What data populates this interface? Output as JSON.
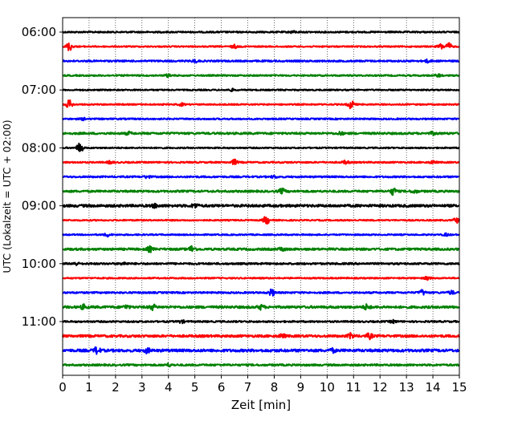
{
  "chart_data": {
    "type": "line",
    "title": "",
    "xlabel": "Zeit  [min]",
    "ylabel": "UTC (Lokalzeit = UTC + 02:00)",
    "xlim": [
      0,
      15
    ],
    "x_ticks": [
      "0",
      "1",
      "2",
      "3",
      "4",
      "5",
      "6",
      "7",
      "8",
      "9",
      "10",
      "11",
      "12",
      "13",
      "14",
      "15"
    ],
    "y_ticks": [
      "06:00",
      "07:00",
      "08:00",
      "09:00",
      "10:00",
      "11:00"
    ],
    "grid": "vertical-dotted",
    "trace_colors": [
      "#000000",
      "#ff0000",
      "#0000ff",
      "#008000"
    ],
    "traces": [
      {
        "start": "06:00",
        "noise": 0.9,
        "events": [
          [
            8.7,
            1.2
          ]
        ]
      },
      {
        "start": "06:15",
        "noise": 0.8,
        "events": [
          [
            0.25,
            5
          ],
          [
            6.5,
            2
          ],
          [
            14.3,
            3
          ],
          [
            14.6,
            4
          ]
        ]
      },
      {
        "start": "06:30",
        "noise": 1.0,
        "events": [
          [
            5.0,
            1.5
          ],
          [
            13.8,
            1.5
          ]
        ]
      },
      {
        "start": "06:45",
        "noise": 0.9,
        "events": [
          [
            4.0,
            1.5
          ],
          [
            14.2,
            1.5
          ]
        ]
      },
      {
        "start": "07:00",
        "noise": 0.8,
        "events": [
          [
            6.4,
            1.2
          ]
        ]
      },
      {
        "start": "07:15",
        "noise": 0.8,
        "events": [
          [
            0.25,
            5
          ],
          [
            4.5,
            1.5
          ],
          [
            10.9,
            5
          ]
        ]
      },
      {
        "start": "07:30",
        "noise": 0.9,
        "events": [
          [
            0.8,
            1.2
          ]
        ]
      },
      {
        "start": "07:45",
        "noise": 1.2,
        "events": [
          [
            2.5,
            1.5
          ],
          [
            10.5,
            1.5
          ],
          [
            14.0,
            1.5
          ]
        ]
      },
      {
        "start": "08:00",
        "noise": 0.8,
        "events": [
          [
            0.65,
            6
          ]
        ]
      },
      {
        "start": "08:15",
        "noise": 0.9,
        "events": [
          [
            1.8,
            1.5
          ],
          [
            6.5,
            3
          ],
          [
            10.7,
            2
          ],
          [
            14.0,
            1.5
          ]
        ]
      },
      {
        "start": "08:30",
        "noise": 1.0,
        "events": [
          [
            3.2,
            1.5
          ],
          [
            8.0,
            1.2
          ]
        ]
      },
      {
        "start": "08:45",
        "noise": 1.2,
        "events": [
          [
            8.3,
            3
          ],
          [
            12.5,
            4
          ],
          [
            13.3,
            2
          ]
        ]
      },
      {
        "start": "09:00",
        "noise": 1.5,
        "events": [
          [
            3.5,
            2
          ],
          [
            5.0,
            2.5
          ]
        ]
      },
      {
        "start": "09:15",
        "noise": 0.8,
        "events": [
          [
            7.7,
            5
          ],
          [
            14.9,
            3
          ]
        ]
      },
      {
        "start": "09:30",
        "noise": 0.8,
        "events": [
          [
            1.7,
            2
          ],
          [
            14.5,
            1.5
          ]
        ]
      },
      {
        "start": "09:45",
        "noise": 1.3,
        "events": [
          [
            3.3,
            3
          ],
          [
            4.9,
            4
          ],
          [
            8.3,
            2
          ]
        ]
      },
      {
        "start": "10:00",
        "noise": 1.1,
        "events": [
          [
            0.5,
            1.5
          ],
          [
            2.3,
            1.5
          ]
        ]
      },
      {
        "start": "10:15",
        "noise": 0.8,
        "events": [
          [
            13.8,
            2
          ]
        ]
      },
      {
        "start": "10:30",
        "noise": 1.0,
        "events": [
          [
            7.9,
            4
          ],
          [
            13.6,
            3
          ],
          [
            14.7,
            2
          ]
        ]
      },
      {
        "start": "10:45",
        "noise": 1.4,
        "events": [
          [
            0.8,
            2.5
          ],
          [
            2.4,
            2
          ],
          [
            3.4,
            3
          ],
          [
            7.5,
            2.5
          ],
          [
            11.5,
            3
          ]
        ]
      },
      {
        "start": "11:00",
        "noise": 1.0,
        "events": [
          [
            4.5,
            1.5
          ],
          [
            12.5,
            1.5
          ]
        ]
      },
      {
        "start": "11:15",
        "noise": 1.4,
        "events": [
          [
            8.3,
            2
          ],
          [
            10.9,
            3
          ],
          [
            11.6,
            3
          ]
        ]
      },
      {
        "start": "11:30",
        "noise": 1.6,
        "events": [
          [
            1.3,
            4
          ],
          [
            3.2,
            2.5
          ],
          [
            10.2,
            2
          ]
        ]
      },
      {
        "start": "11:45",
        "noise": 1.1,
        "events": [
          [
            4.0,
            1.5
          ]
        ]
      }
    ]
  }
}
